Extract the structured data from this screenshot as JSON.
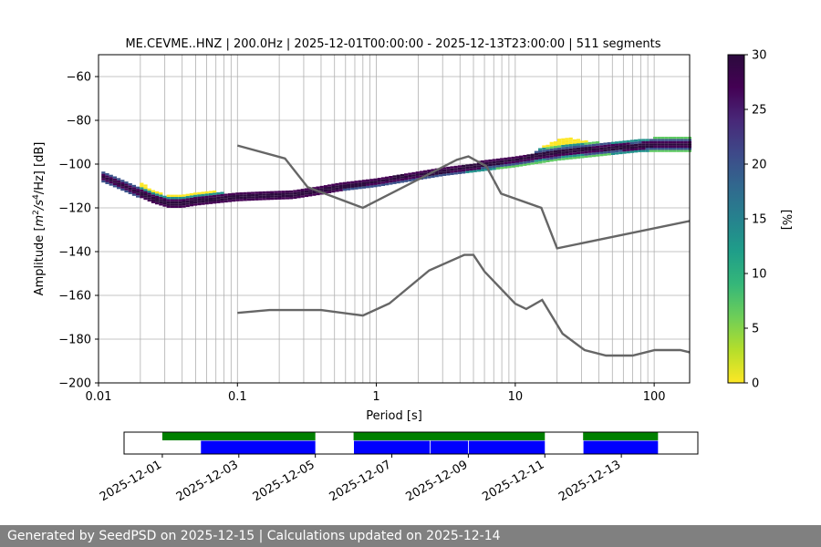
{
  "chart_data": [
    {
      "type": "heatmap",
      "title": "ME.CEVME..HNZ | 200.0Hz | 2025-12-01T00:00:00 - 2025-12-13T23:00:00 | 511 segments",
      "xlabel": "Period [s]",
      "ylabel": "Amplitude [m²/s⁴/Hz] [dB]",
      "x_scale": "log",
      "xlim": [
        0.01,
        180
      ],
      "ylim": [
        -200,
        -50
      ],
      "x_tick_labels": [
        "0.01",
        "0.1",
        "1",
        "10",
        "100"
      ],
      "y_ticks": [
        -200,
        -180,
        -160,
        -140,
        -120,
        -100,
        -80,
        -60
      ],
      "grid": true,
      "probability_label": "[%]",
      "colorbar_range": [
        0,
        30
      ],
      "colorbar_ticks": [
        0,
        5,
        10,
        15,
        20,
        25,
        30
      ],
      "colormap": [
        "#fde725",
        "#5ec962",
        "#21918c",
        "#3b528b",
        "#440154",
        "#2b0a3d"
      ],
      "psd_mode": {
        "x": [
          0.01,
          0.013,
          0.018,
          0.025,
          0.032,
          0.04,
          0.05,
          0.07,
          0.1,
          0.15,
          0.25,
          0.4,
          0.6,
          1,
          1.5,
          2.5,
          4,
          6,
          10,
          15,
          25,
          40,
          70,
          100,
          180
        ],
        "y": [
          -105,
          -108,
          -112,
          -116,
          -118,
          -118,
          -117,
          -116,
          -115,
          -114.5,
          -114,
          -112,
          -110,
          -108,
          -106,
          -104,
          -102,
          -100,
          -98,
          -96,
          -94,
          -93,
          -92,
          -91,
          -91
        ]
      },
      "psd_upper": {
        "x": [
          0.02,
          0.025,
          0.03,
          0.04,
          0.06,
          0.08,
          0.1,
          0.15,
          0.25,
          0.4,
          1,
          3,
          6,
          10,
          13,
          16,
          20,
          25,
          30,
          40,
          60,
          100,
          180
        ],
        "y": [
          -108,
          -112,
          -114,
          -114,
          -112,
          -113,
          -113.5,
          -113.5,
          -113,
          -111,
          -107,
          -102,
          -99,
          -97,
          -96,
          -92,
          -89,
          -88,
          -89,
          -90,
          -89,
          -88,
          -88
        ]
      },
      "psd_lower": {
        "x": [
          0.02,
          0.03,
          0.05,
          0.08,
          0.1,
          0.2,
          0.4,
          1,
          3,
          10,
          20,
          40,
          80,
          180
        ],
        "y": [
          -111,
          -119,
          -118.5,
          -117,
          -116,
          -115,
          -113,
          -110,
          -105,
          -101,
          -98,
          -96,
          -94,
          -94
        ]
      },
      "series": [
        {
          "name": "",
          "color": "#666666",
          "x": [
            0.1,
            0.22,
            0.32,
            0.8,
            3.8,
            4.6,
            6.2,
            7.9,
            15.4,
            20,
            200
          ],
          "y": [
            -91.5,
            -97.4,
            -110.5,
            -120,
            -98,
            -96.5,
            -101,
            -113.5,
            -120,
            -138.5,
            -126
          ]
        },
        {
          "name": "",
          "color": "#666666",
          "x": [
            0.1,
            0.17,
            0.4,
            0.8,
            1.24,
            2.4,
            4.3,
            5.0,
            6.0,
            10,
            12,
            15.6,
            21.9,
            31.6,
            45,
            70,
            101,
            154,
            180
          ],
          "y": [
            -168,
            -166.7,
            -166.7,
            -169.2,
            -163.7,
            -148.6,
            -141.5,
            -141.5,
            -149.1,
            -163.8,
            -166.2,
            -162.1,
            -177.5,
            -185,
            -187.5,
            -187.5,
            -185,
            -185,
            -186
          ]
        }
      ]
    },
    {
      "type": "timeline",
      "date_range": [
        "2025-11-30",
        "2025-12-15"
      ],
      "tick_labels": [
        "2025-12-01",
        "2025-12-03",
        "2025-12-05",
        "2025-12-07",
        "2025-12-09",
        "2025-12-11",
        "2025-12-13"
      ],
      "available_segments": [
        [
          "2025-12-01T00:00",
          "2025-12-05T00:00"
        ],
        [
          "2025-12-06T00:00",
          "2025-12-11T00:00"
        ],
        [
          "2025-12-12T00:00",
          "2025-12-13T23:00"
        ]
      ],
      "used_segments": [
        [
          "2025-12-02T00:00",
          "2025-12-05T00:00"
        ],
        [
          "2025-12-06T00:00",
          "2025-12-08T00:00"
        ],
        [
          "2025-12-08T00:00",
          "2025-12-09T00:00"
        ],
        [
          "2025-12-09T00:00",
          "2025-12-11T00:00"
        ],
        [
          "2025-12-12T00:00",
          "2025-12-13T23:00"
        ]
      ],
      "available_color": "#008000",
      "used_color": "#0000ff"
    }
  ],
  "footer": {
    "text": "Generated by SeedPSD on 2025-12-15 | Calculations updated on 2025-12-14",
    "background": "#808080"
  }
}
